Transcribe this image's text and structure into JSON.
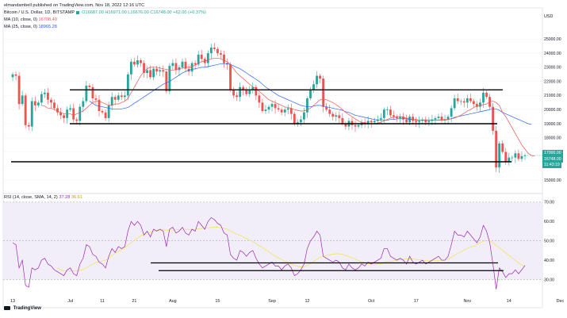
{
  "author": "elmandambell published on TradingView.com, Nov 18, 2022 12:16 UTC",
  "legend": {
    "title": "Bitcoin / U.S. Dollar, 1D, BITSTAMP",
    "ohlc": "O16687.00 H16971.00 L16676.00 C16748.00 +62.00 (+0.37%)",
    "ma1_label": "MA (10, close, 0)",
    "ma1_value": "16708.40",
    "ma2_label": "MA (25, close, 0)",
    "ma2_value": "18965.28",
    "rsi_label": "RSI (14, close, SMA, 14, 2)",
    "rsi_value": "37.28",
    "rsi_sma_value": "36.61"
  },
  "currency": "USD",
  "last_price": "16748.00",
  "countdown": "11:43:19",
  "ma_tag": "17000.00",
  "logo_text": "TradingView",
  "colors": {
    "up": "#26a69a",
    "down": "#ef5350",
    "ma_fast": "#ef5350",
    "ma_slow": "#2962ff",
    "rsi": "#9c27b0",
    "rsi_sma": "#f2e24a",
    "rsi_band": "#ede7f6",
    "trendline": "#000000"
  },
  "chart_data": [
    {
      "type": "candlestick",
      "ylim": [
        14500,
        26200
      ],
      "y_ticks": [
        15000,
        16000,
        17000,
        18000,
        19000,
        20000,
        21000,
        22000,
        23000,
        24000,
        25000
      ],
      "x_ticks": [
        "13",
        "Jul",
        "11",
        "21",
        "Aug",
        "15",
        "Sep",
        "12",
        "Oct",
        "17",
        "Nov",
        "14",
        "Dec"
      ],
      "x_tick_day_index": [
        0,
        18,
        28,
        38,
        50,
        64,
        81,
        92,
        112,
        126,
        142,
        155,
        171
      ],
      "start_date": "2022-06-13",
      "close": [
        22500,
        22400,
        20400,
        21000,
        18900,
        18800,
        20600,
        20300,
        20500,
        21100,
        21200,
        20700,
        20500,
        20100,
        19800,
        19600,
        19400,
        20000,
        20100,
        19300,
        19200,
        20200,
        20600,
        21700,
        21600,
        20800,
        20700,
        19900,
        19800,
        19400,
        20300,
        20900,
        20700,
        21000,
        20900,
        21000,
        22500,
        23400,
        23200,
        23500,
        23300,
        22600,
        22800,
        22300,
        22900,
        22700,
        22800,
        22700,
        21300,
        23100,
        23300,
        22800,
        23000,
        23400,
        22900,
        22700,
        23300,
        23200,
        23900,
        23600,
        23300,
        24000,
        24400,
        24300,
        24000,
        23900,
        23300,
        23200,
        21400,
        21000,
        20900,
        21600,
        21400,
        21100,
        21400,
        21600,
        21000,
        20500,
        19900,
        20000,
        20200,
        20400,
        20100,
        20000,
        19800,
        20000,
        20100,
        19700,
        19000,
        19100,
        19300,
        19800,
        20800,
        21400,
        21800,
        22400,
        22200,
        20200,
        20000,
        19700,
        19500,
        19600,
        19400,
        19000,
        18800,
        19200,
        18900,
        18800,
        18900,
        19100,
        19000,
        19200,
        19100,
        19200,
        19300,
        19400,
        20000,
        20000,
        19600,
        19500,
        19400,
        19500,
        19300,
        19100,
        19500,
        19200,
        19100,
        19200,
        19300,
        19100,
        19200,
        19300,
        19400,
        19500,
        19300,
        19300,
        19500,
        20100,
        20800,
        20600,
        20600,
        20500,
        20800,
        20600,
        20400,
        20200,
        20500,
        21200,
        20900,
        20200,
        18500,
        15900,
        17600,
        17000,
        16300,
        16600,
        16600,
        16900,
        16500,
        16700,
        16748
      ],
      "ma_fast": [
        null,
        null,
        null,
        null,
        null,
        null,
        null,
        null,
        null,
        20300,
        20250,
        20100,
        20100,
        20000,
        19900,
        19800,
        19700,
        19700,
        19700,
        19600,
        19700,
        19800,
        19900,
        20100,
        20300,
        20500,
        20600,
        20600,
        20500,
        20400,
        20300,
        20300,
        20400,
        20400,
        20500,
        20600,
        20800,
        21200,
        21600,
        22000,
        22400,
        22700,
        22900,
        23000,
        23000,
        23000,
        22950,
        22900,
        22850,
        22800,
        22800,
        22850,
        22900,
        22950,
        23000,
        23000,
        23050,
        23150,
        23300,
        23400,
        23450,
        23500,
        23600,
        23650,
        23650,
        23600,
        23500,
        23400,
        23200,
        22900,
        22600,
        22400,
        22200,
        22000,
        21800,
        21600,
        21500,
        21300,
        21100,
        20900,
        20700,
        20600,
        20500,
        20400,
        20300,
        20200,
        20150,
        20100,
        20000,
        19950,
        19900,
        19900,
        20000,
        20100,
        20300,
        20500,
        20700,
        20700,
        20700,
        20600,
        20500,
        20350,
        20200,
        20000,
        19800,
        19650,
        19500,
        19350,
        19200,
        19100,
        19050,
        19000,
        19000,
        19000,
        19050,
        19100,
        19200,
        19300,
        19400,
        19450,
        19500,
        19500,
        19450,
        19400,
        19350,
        19300,
        19300,
        19250,
        19250,
        19250,
        19250,
        19250,
        19250,
        19250,
        19300,
        19300,
        19300,
        19350,
        19400,
        19500,
        19600,
        19750,
        19900,
        20000,
        20150,
        20250,
        20300,
        20350,
        20400,
        20550,
        20600,
        20500,
        20300,
        19800,
        19500,
        19100,
        18700,
        18300,
        17900,
        17500,
        17200,
        16900,
        16750,
        16708
      ],
      "ma_slow": [
        null,
        null,
        null,
        null,
        null,
        null,
        null,
        null,
        null,
        null,
        null,
        null,
        null,
        null,
        null,
        null,
        null,
        null,
        null,
        null,
        null,
        null,
        null,
        null,
        20600,
        20450,
        20300,
        20250,
        20200,
        20150,
        20100,
        20050,
        20050,
        20050,
        20050,
        20100,
        20150,
        20300,
        20450,
        20600,
        20750,
        20900,
        21050,
        21200,
        21350,
        21500,
        21650,
        21800,
        21900,
        22000,
        22150,
        22300,
        22450,
        22600,
        22700,
        22800,
        22850,
        22900,
        22950,
        23000,
        23000,
        23050,
        23100,
        23150,
        23200,
        23250,
        23250,
        23250,
        23200,
        23100,
        23000,
        22900,
        22750,
        22600,
        22450,
        22300,
        22150,
        22000,
        21800,
        21600,
        21450,
        21300,
        21150,
        21000,
        20900,
        20800,
        20700,
        20600,
        20500,
        20400,
        20300,
        20250,
        20200,
        20200,
        20250,
        20300,
        20300,
        20250,
        20200,
        20150,
        20100,
        20050,
        20000,
        19950,
        19850,
        19800,
        19700,
        19600,
        19550,
        19500,
        19450,
        19400,
        19350,
        19300,
        19250,
        19250,
        19250,
        19250,
        19300,
        19300,
        19350,
        19350,
        19350,
        19350,
        19300,
        19300,
        19250,
        19250,
        19250,
        19250,
        19250,
        19250,
        19250,
        19250,
        19250,
        19250,
        19300,
        19350,
        19450,
        19500,
        19550,
        19600,
        19650,
        19700,
        19750,
        19800,
        19850,
        19900,
        19950,
        20000,
        20050,
        20050,
        19950,
        19800,
        19700,
        19600,
        19500,
        19400,
        19300,
        19200,
        19100,
        19000,
        18965
      ],
      "horizontal_levels": [
        21400,
        19000,
        16300
      ]
    },
    {
      "type": "line",
      "title": "RSI",
      "ylim": [
        22,
        72
      ],
      "y_ticks": [
        30,
        40,
        50,
        60,
        70
      ],
      "band": [
        30,
        70
      ],
      "midline": 50,
      "rsi": [
        49,
        48,
        36,
        40,
        27,
        26,
        36,
        35,
        36,
        40,
        41,
        38,
        37,
        35,
        34,
        33,
        32,
        35,
        36,
        33,
        32,
        38,
        41,
        48,
        47,
        43,
        42,
        39,
        38,
        36,
        42,
        46,
        44,
        47,
        46,
        47,
        55,
        60,
        58,
        60,
        58,
        53,
        55,
        52,
        56,
        55,
        56,
        55,
        47,
        56,
        57,
        54,
        55,
        57,
        54,
        53,
        56,
        55,
        60,
        58,
        56,
        60,
        62,
        61,
        59,
        58,
        54,
        53,
        43,
        41,
        40,
        45,
        44,
        42,
        44,
        45,
        41,
        38,
        36,
        37,
        38,
        39,
        37,
        37,
        35,
        37,
        38,
        36,
        32,
        33,
        35,
        38,
        46,
        50,
        52,
        55,
        53,
        42,
        41,
        40,
        39,
        40,
        39,
        36,
        35,
        38,
        36,
        35,
        36,
        38,
        37,
        39,
        38,
        39,
        40,
        41,
        46,
        46,
        42,
        41,
        40,
        41,
        40,
        38,
        42,
        39,
        38,
        39,
        40,
        38,
        39,
        40,
        41,
        42,
        40,
        40,
        42,
        48,
        55,
        53,
        53,
        52,
        55,
        53,
        51,
        49,
        52,
        58,
        55,
        49,
        38,
        25,
        36,
        34,
        31,
        33,
        33,
        35,
        33,
        35,
        37.28
      ],
      "rsi_sma": [
        null,
        null,
        null,
        null,
        null,
        null,
        null,
        null,
        null,
        null,
        null,
        null,
        null,
        null,
        36,
        35,
        34.5,
        34.5,
        34.5,
        34.5,
        34.5,
        34.8,
        35.2,
        36,
        37,
        38,
        38.8,
        39.3,
        39.6,
        40,
        41,
        42.5,
        43.5,
        44.5,
        45.5,
        46.5,
        47.8,
        49,
        50.2,
        51.5,
        52.5,
        53.3,
        54,
        54.5,
        55,
        55.4,
        55.6,
        55.7,
        55.5,
        55.5,
        55.6,
        55.7,
        55.8,
        56,
        56,
        55.9,
        55.9,
        56,
        56.2,
        56.4,
        56.5,
        56.7,
        56.9,
        57,
        57,
        56.8,
        56.5,
        56,
        55.2,
        54.3,
        53.4,
        52.8,
        52,
        51.2,
        50.4,
        49.6,
        48.6,
        47.5,
        46.5,
        45.4,
        44.3,
        43.2,
        42.2,
        41.2,
        40.3,
        39.5,
        38.8,
        38.1,
        37.3,
        36.8,
        36.5,
        36.6,
        37.3,
        38.2,
        39.2,
        40.5,
        41.5,
        42,
        42.4,
        42.8,
        43.1,
        43.3,
        43.3,
        43,
        42.5,
        41.9,
        41.2,
        40.5,
        39.8,
        39.1,
        38.6,
        38.2,
        38,
        37.9,
        38,
        38.2,
        38.6,
        39.1,
        39.4,
        39.7,
        40,
        40.3,
        40.5,
        40.6,
        40.7,
        40.6,
        40.4,
        40.2,
        40,
        39.8,
        39.7,
        39.7,
        39.8,
        39.9,
        39.9,
        40,
        40.5,
        41.5,
        42.5,
        43.5,
        44.3,
        45.2,
        46,
        46.7,
        47.3,
        48,
        49,
        49.8,
        50.2,
        50,
        48.9,
        47.7,
        46.4,
        45,
        43.8,
        42.5,
        41.2,
        39.9,
        38.6,
        37.5,
        36.61
      ],
      "trendlines": [
        {
          "from_day": 0,
          "to_day": 0,
          "level": 36.5
        }
      ]
    }
  ]
}
